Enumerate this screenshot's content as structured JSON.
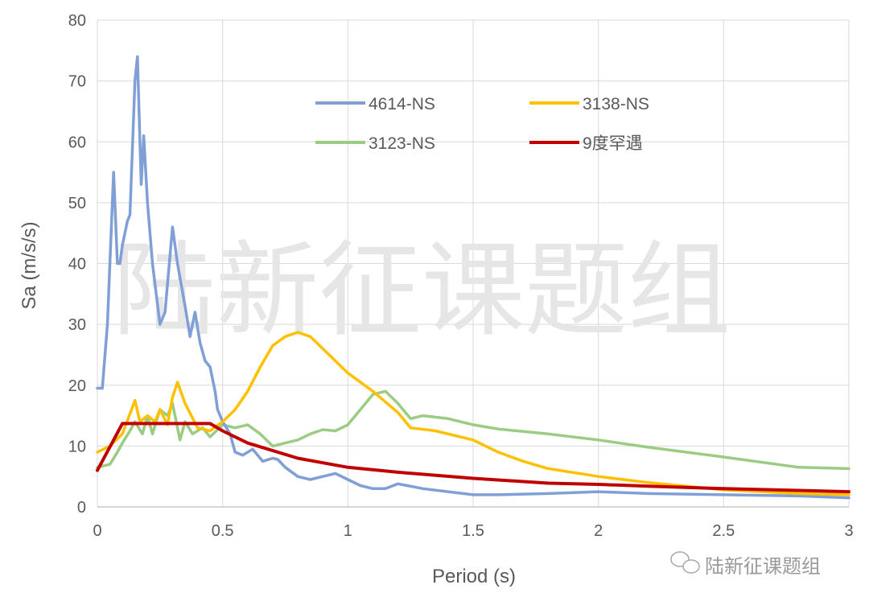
{
  "chart_data": {
    "type": "line",
    "title": "",
    "xlabel": "Period (s)",
    "ylabel": "Sa (m/s/s)",
    "xlim": [
      0,
      3
    ],
    "ylim": [
      0,
      80
    ],
    "xticks": [
      0,
      0.5,
      1,
      1.5,
      2,
      2.5,
      3
    ],
    "xtick_labels": [
      "0",
      "0.5",
      "1",
      "1.5",
      "2",
      "2.5",
      "3"
    ],
    "yticks": [
      0,
      10,
      20,
      30,
      40,
      50,
      60,
      70,
      80
    ],
    "ytick_labels": [
      "0",
      "10",
      "20",
      "30",
      "40",
      "50",
      "60",
      "70",
      "80"
    ],
    "grid": true,
    "legend_placement": "top-right (inside plot, two columns)",
    "series": [
      {
        "name": "4614-NS",
        "color": "#7f9fd6",
        "x": [
          0,
          0.02,
          0.04,
          0.055,
          0.065,
          0.08,
          0.09,
          0.1,
          0.12,
          0.13,
          0.15,
          0.16,
          0.175,
          0.185,
          0.2,
          0.22,
          0.25,
          0.27,
          0.3,
          0.32,
          0.35,
          0.37,
          0.39,
          0.41,
          0.43,
          0.45,
          0.47,
          0.48,
          0.5,
          0.53,
          0.55,
          0.58,
          0.62,
          0.66,
          0.7,
          0.72,
          0.75,
          0.8,
          0.85,
          0.9,
          0.95,
          1.0,
          1.05,
          1.1,
          1.15,
          1.2,
          1.3,
          1.4,
          1.5,
          1.6,
          1.8,
          2.0,
          2.2,
          2.5,
          2.8,
          3.0
        ],
        "y": [
          19.5,
          19.5,
          30,
          45,
          55,
          40,
          40,
          43,
          47,
          48,
          70,
          74,
          53,
          61,
          50,
          40,
          30,
          32,
          46,
          40,
          33,
          28,
          32,
          27,
          24,
          23,
          19,
          16,
          14,
          12,
          9,
          8.5,
          9.5,
          7.5,
          8,
          7.8,
          6.5,
          5,
          4.5,
          5,
          5.5,
          4.5,
          3.5,
          3,
          3,
          3.8,
          3,
          2.5,
          2,
          2,
          2.2,
          2.5,
          2.2,
          2,
          1.8,
          1.5
        ]
      },
      {
        "name": "3138-NS",
        "color": "#ffc000",
        "x": [
          0,
          0.05,
          0.1,
          0.15,
          0.17,
          0.2,
          0.23,
          0.25,
          0.28,
          0.3,
          0.32,
          0.35,
          0.4,
          0.45,
          0.5,
          0.55,
          0.6,
          0.65,
          0.7,
          0.75,
          0.8,
          0.85,
          0.9,
          0.95,
          1.0,
          1.1,
          1.2,
          1.25,
          1.35,
          1.5,
          1.6,
          1.7,
          1.8,
          2.0,
          2.2,
          2.5,
          2.8,
          3.0
        ],
        "y": [
          9,
          10,
          12,
          17.5,
          14,
          15,
          14,
          16,
          13.5,
          18,
          20.5,
          17,
          13,
          12.5,
          14,
          16,
          19,
          23,
          26.5,
          28,
          28.7,
          28,
          26,
          24,
          22,
          19,
          15.5,
          13,
          12.5,
          11,
          9,
          7.5,
          6.3,
          5,
          4,
          2.8,
          2.2,
          2
        ]
      },
      {
        "name": "3123-NS",
        "color": "#9ccc84",
        "x": [
          0,
          0.05,
          0.08,
          0.1,
          0.13,
          0.15,
          0.18,
          0.2,
          0.22,
          0.25,
          0.28,
          0.3,
          0.33,
          0.35,
          0.38,
          0.42,
          0.45,
          0.5,
          0.55,
          0.6,
          0.65,
          0.7,
          0.75,
          0.8,
          0.85,
          0.9,
          0.95,
          1.0,
          1.05,
          1.1,
          1.15,
          1.2,
          1.25,
          1.3,
          1.4,
          1.5,
          1.6,
          1.8,
          2.0,
          2.2,
          2.5,
          2.8,
          3.0
        ],
        "y": [
          6.5,
          7,
          9,
          10.5,
          12.5,
          14,
          12,
          15,
          12,
          16,
          15,
          17,
          11,
          14,
          12,
          13,
          11.5,
          13.5,
          13,
          13.5,
          12,
          10,
          10.5,
          11,
          12,
          12.7,
          12.5,
          13.5,
          16,
          18.5,
          19,
          17,
          14.5,
          15,
          14.5,
          13.5,
          12.8,
          12,
          11,
          9.8,
          8.2,
          6.5,
          6.3
        ]
      },
      {
        "name": "9度罕遇",
        "color": "#c00000",
        "x": [
          0,
          0.1,
          0.45,
          0.5,
          0.6,
          0.8,
          1.0,
          1.2,
          1.5,
          1.8,
          2.0,
          2.2,
          2.5,
          3.0
        ],
        "y": [
          6,
          13.7,
          13.7,
          12.5,
          10.5,
          8,
          6.5,
          5.7,
          4.7,
          3.9,
          3.7,
          3.4,
          3,
          2.5
        ]
      }
    ]
  },
  "watermark": {
    "text": "陆新征课题组",
    "corner_label": "陆新征课题组",
    "corner_icon": "wechat-icon"
  }
}
